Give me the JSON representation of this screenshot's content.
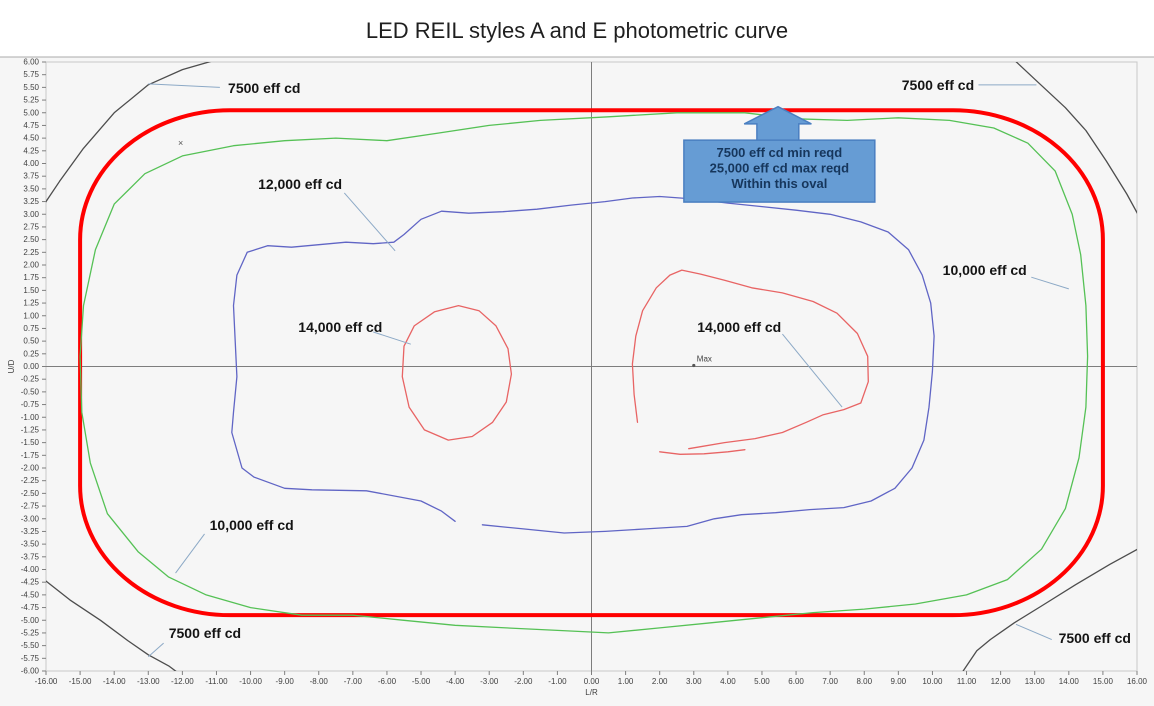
{
  "chart_data": {
    "type": "contour",
    "title": "LED REIL styles A and E photometric curve",
    "xlabel": "L/R",
    "ylabel": "U/D",
    "xlim": [
      -16,
      16
    ],
    "ylim": [
      -6,
      6
    ],
    "x_tick_step": 1.0,
    "y_tick_step": 0.25,
    "tick_decimals": 2,
    "grid": false,
    "legend": "none (curves labeled with leader lines)",
    "colors": {
      "chart_bg": "#f6f6f6",
      "frame_line": "#ababab",
      "plot_border": "#c8c8c8",
      "axis_line": "#7d7d7d",
      "tick": "#7f7f7f",
      "leader": "#8ca9c6",
      "requirement_oval": "#ff0000",
      "level_7500": "#4d4d4d",
      "level_10000": "#55c155",
      "level_12000": "#6065c5",
      "level_14000": "#e86464",
      "callout_fill": "#669cd4",
      "callout_border": "#4a7fc1",
      "callout_text": "#16365c"
    },
    "series": [
      {
        "name": "requirement oval (7500 min / 25000 max)",
        "level": "7500-25000",
        "color_key": "requirement_oval",
        "width": 4,
        "shape": "rounded_rect",
        "rect": {
          "x": [
            -15,
            15
          ],
          "y": [
            -4.9,
            5.05
          ],
          "rx": 4.4,
          "ry": 2.55
        }
      },
      {
        "name": "7500 eff cd",
        "level": 7500,
        "color_key": "level_7500",
        "width": 1.3,
        "paths": [
          {
            "closed": false,
            "points": [
              [
                -10.7,
                6.1
              ],
              [
                -12.0,
                5.85
              ],
              [
                -13.0,
                5.55
              ],
              [
                -14.0,
                5.0
              ],
              [
                -14.9,
                4.3
              ],
              [
                -15.6,
                3.65
              ],
              [
                -16.15,
                3.1
              ]
            ]
          },
          {
            "closed": false,
            "points": [
              [
                12.3,
                6.1
              ],
              [
                13.1,
                5.6
              ],
              [
                13.9,
                5.1
              ],
              [
                14.5,
                4.65
              ],
              [
                15.1,
                4.05
              ],
              [
                15.7,
                3.4
              ],
              [
                16.15,
                2.85
              ]
            ]
          },
          {
            "closed": false,
            "points": [
              [
                -16.15,
                -4.15
              ],
              [
                -15.3,
                -4.6
              ],
              [
                -14.4,
                -5.0
              ],
              [
                -13.6,
                -5.4
              ],
              [
                -13.0,
                -5.68
              ],
              [
                -12.4,
                -5.9
              ],
              [
                -12.0,
                -6.1
              ]
            ]
          },
          {
            "closed": false,
            "points": [
              [
                10.8,
                -6.1
              ],
              [
                11.3,
                -5.6
              ],
              [
                11.7,
                -5.38
              ],
              [
                12.4,
                -5.05
              ],
              [
                13.2,
                -4.72
              ],
              [
                14.2,
                -4.3
              ],
              [
                15.2,
                -3.9
              ],
              [
                16.15,
                -3.55
              ]
            ]
          }
        ]
      },
      {
        "name": "10,000 eff cd",
        "level": 10000,
        "color_key": "level_10000",
        "width": 1.3,
        "paths": [
          {
            "closed": true,
            "points": [
              [
                -12.0,
                4.15
              ],
              [
                -10.5,
                4.35
              ],
              [
                -9.0,
                4.45
              ],
              [
                -7.5,
                4.5
              ],
              [
                -6.0,
                4.45
              ],
              [
                -4.5,
                4.6
              ],
              [
                -3.0,
                4.75
              ],
              [
                -1.5,
                4.85
              ],
              [
                0.5,
                4.92
              ],
              [
                2.5,
                5.0
              ],
              [
                4.5,
                5.0
              ],
              [
                6.0,
                4.88
              ],
              [
                7.5,
                4.85
              ],
              [
                9.0,
                4.9
              ],
              [
                10.5,
                4.85
              ],
              [
                11.8,
                4.7
              ],
              [
                12.8,
                4.4
              ],
              [
                13.6,
                3.85
              ],
              [
                14.1,
                3.0
              ],
              [
                14.35,
                2.2
              ],
              [
                14.5,
                1.2
              ],
              [
                14.55,
                0.2
              ],
              [
                14.5,
                -0.8
              ],
              [
                14.3,
                -1.8
              ],
              [
                13.9,
                -2.8
              ],
              [
                13.2,
                -3.6
              ],
              [
                12.2,
                -4.2
              ],
              [
                11.0,
                -4.5
              ],
              [
                9.5,
                -4.68
              ],
              [
                8.0,
                -4.78
              ],
              [
                6.5,
                -4.85
              ],
              [
                5.0,
                -4.95
              ],
              [
                3.5,
                -5.05
              ],
              [
                2.0,
                -5.15
              ],
              [
                0.5,
                -5.25
              ],
              [
                -1.0,
                -5.2
              ],
              [
                -2.5,
                -5.15
              ],
              [
                -4.0,
                -5.1
              ],
              [
                -5.5,
                -5.0
              ],
              [
                -7.0,
                -4.9
              ],
              [
                -8.5,
                -4.9
              ],
              [
                -10.0,
                -4.75
              ],
              [
                -11.3,
                -4.5
              ],
              [
                -12.4,
                -4.15
              ],
              [
                -13.3,
                -3.65
              ],
              [
                -14.2,
                -2.9
              ],
              [
                -14.7,
                -1.9
              ],
              [
                -14.95,
                -0.9
              ],
              [
                -15.0,
                0.2
              ],
              [
                -14.9,
                1.2
              ],
              [
                -14.55,
                2.3
              ],
              [
                -14.0,
                3.2
              ],
              [
                -13.1,
                3.8
              ]
            ]
          }
        ]
      },
      {
        "name": "12,000 eff cd",
        "level": 12000,
        "color_key": "level_12000",
        "width": 1.3,
        "paths": [
          {
            "closed": false,
            "points": [
              [
                -3.2,
                -3.12
              ],
              [
                -2.0,
                -3.2
              ],
              [
                -0.8,
                -3.28
              ],
              [
                0.4,
                -3.25
              ],
              [
                1.6,
                -3.2
              ],
              [
                2.8,
                -3.15
              ],
              [
                3.6,
                -3.0
              ],
              [
                4.4,
                -2.92
              ],
              [
                5.4,
                -2.88
              ],
              [
                6.4,
                -2.82
              ],
              [
                7.4,
                -2.78
              ],
              [
                8.2,
                -2.65
              ],
              [
                8.9,
                -2.4
              ],
              [
                9.4,
                -2.0
              ],
              [
                9.75,
                -1.45
              ],
              [
                9.9,
                -0.8
              ],
              [
                10.0,
                -0.1
              ],
              [
                10.05,
                0.6
              ],
              [
                9.95,
                1.25
              ],
              [
                9.7,
                1.8
              ],
              [
                9.3,
                2.3
              ],
              [
                8.7,
                2.65
              ],
              [
                7.9,
                2.85
              ],
              [
                7.0,
                3.0
              ],
              [
                6.0,
                3.08
              ],
              [
                5.0,
                3.15
              ],
              [
                4.0,
                3.22
              ],
              [
                3.0,
                3.3
              ],
              [
                2.0,
                3.35
              ],
              [
                1.2,
                3.32
              ],
              [
                0.4,
                3.25
              ],
              [
                -0.6,
                3.18
              ],
              [
                -1.6,
                3.1
              ],
              [
                -2.6,
                3.05
              ],
              [
                -3.6,
                3.02
              ],
              [
                -4.4,
                3.06
              ],
              [
                -5.0,
                2.9
              ],
              [
                -5.5,
                2.6
              ],
              [
                -5.8,
                2.45
              ],
              [
                -6.4,
                2.42
              ],
              [
                -7.2,
                2.45
              ],
              [
                -8.0,
                2.4
              ],
              [
                -8.8,
                2.35
              ],
              [
                -9.5,
                2.38
              ],
              [
                -10.1,
                2.25
              ],
              [
                -10.4,
                1.8
              ],
              [
                -10.5,
                1.2
              ],
              [
                -10.45,
                0.5
              ],
              [
                -10.4,
                -0.2
              ],
              [
                -10.5,
                -0.9
              ],
              [
                -10.55,
                -1.3
              ],
              [
                -10.25,
                -2.0
              ],
              [
                -9.9,
                -2.18
              ],
              [
                -9.0,
                -2.4
              ],
              [
                -8.2,
                -2.43
              ],
              [
                -6.6,
                -2.45
              ],
              [
                -5.0,
                -2.65
              ],
              [
                -4.4,
                -2.85
              ],
              [
                -4.0,
                -3.05
              ]
            ]
          }
        ]
      },
      {
        "name": "14,000 eff cd",
        "level": 14000,
        "color_key": "level_14000",
        "width": 1.3,
        "paths": [
          {
            "closed": true,
            "points": [
              [
                -3.9,
                1.2
              ],
              [
                -3.3,
                1.1
              ],
              [
                -2.8,
                0.8
              ],
              [
                -2.45,
                0.35
              ],
              [
                -2.35,
                -0.15
              ],
              [
                -2.5,
                -0.7
              ],
              [
                -2.9,
                -1.1
              ],
              [
                -3.5,
                -1.38
              ],
              [
                -4.2,
                -1.45
              ],
              [
                -4.9,
                -1.25
              ],
              [
                -5.35,
                -0.8
              ],
              [
                -5.55,
                -0.2
              ],
              [
                -5.5,
                0.4
              ],
              [
                -5.2,
                0.8
              ],
              [
                -4.6,
                1.08
              ]
            ]
          },
          {
            "closed": false,
            "points": [
              [
                1.35,
                -1.1
              ],
              [
                1.25,
                -0.55
              ],
              [
                1.2,
                0.05
              ],
              [
                1.3,
                0.6
              ],
              [
                1.5,
                1.1
              ],
              [
                1.9,
                1.55
              ],
              [
                2.3,
                1.8
              ],
              [
                2.65,
                1.9
              ],
              [
                3.2,
                1.82
              ],
              [
                3.9,
                1.7
              ],
              [
                4.7,
                1.55
              ],
              [
                5.6,
                1.45
              ],
              [
                6.5,
                1.28
              ],
              [
                7.2,
                1.05
              ],
              [
                7.8,
                0.65
              ],
              [
                8.1,
                0.2
              ],
              [
                8.12,
                -0.3
              ],
              [
                7.9,
                -0.72
              ],
              [
                7.4,
                -0.85
              ],
              [
                6.8,
                -0.95
              ],
              [
                6.3,
                -1.1
              ],
              [
                5.6,
                -1.3
              ],
              [
                4.8,
                -1.42
              ],
              [
                3.9,
                -1.5
              ],
              [
                3.2,
                -1.58
              ],
              [
                2.85,
                -1.62
              ]
            ]
          },
          {
            "closed": false,
            "points": [
              [
                2.0,
                -1.68
              ],
              [
                2.6,
                -1.73
              ],
              [
                3.3,
                -1.72
              ],
              [
                4.0,
                -1.68
              ],
              [
                4.5,
                -1.64
              ]
            ]
          }
        ]
      }
    ],
    "labels": [
      {
        "text": "7500 eff cd",
        "x": -10.66,
        "y": 5.49,
        "leader": [
          [
            -13.0,
            5.57
          ],
          [
            -10.9,
            5.5
          ]
        ]
      },
      {
        "text": "7500 eff cd",
        "x": 9.1,
        "y": 5.55,
        "leader": [
          [
            11.35,
            5.55
          ],
          [
            13.05,
            5.55
          ]
        ]
      },
      {
        "text": "12,000 eff cd",
        "x": -9.78,
        "y": 3.6,
        "leader": [
          [
            -7.25,
            3.42
          ],
          [
            -5.76,
            2.28
          ]
        ]
      },
      {
        "text": "14,000 eff cd",
        "x": -8.6,
        "y": 0.78,
        "leader": [
          [
            -6.4,
            0.68
          ],
          [
            -5.3,
            0.44
          ]
        ]
      },
      {
        "text": "14,000 eff cd",
        "x": 3.1,
        "y": 0.78,
        "leader": [
          [
            5.6,
            0.64
          ],
          [
            7.35,
            -0.8
          ]
        ]
      },
      {
        "text": "10,000 eff cd",
        "x": 10.3,
        "y": 1.9,
        "leader": [
          [
            12.9,
            1.76
          ],
          [
            14.0,
            1.53
          ]
        ]
      },
      {
        "text": "10,000 eff cd",
        "x": -11.2,
        "y": -3.12,
        "leader": [
          [
            -11.35,
            -3.3
          ],
          [
            -12.2,
            -4.07
          ]
        ]
      },
      {
        "text": "7500 eff cd",
        "x": -12.4,
        "y": -5.25,
        "leader": [
          [
            -12.55,
            -5.45
          ],
          [
            -13.0,
            -5.72
          ]
        ]
      },
      {
        "text": "7500 eff cd",
        "x": 13.7,
        "y": -5.35,
        "leader": [
          [
            13.5,
            -5.38
          ],
          [
            12.45,
            -5.08
          ]
        ]
      }
    ],
    "callout": {
      "lines": [
        "7500 eff cd min reqd",
        "25,000 eff cd max reqd",
        "Within this oval"
      ],
      "box": [
        2.71,
        3.24,
        8.31,
        4.46
      ],
      "arrow_points": [
        [
          5.47,
          5.12
        ],
        [
          6.45,
          4.78
        ],
        [
          6.08,
          4.78
        ],
        [
          6.08,
          4.46
        ],
        [
          4.85,
          4.46
        ],
        [
          4.85,
          4.78
        ],
        [
          4.48,
          4.78
        ]
      ]
    },
    "point_markers": [
      {
        "symbol": "x",
        "label": "",
        "x": -12.05,
        "y": 4.4
      },
      {
        "symbol": "max",
        "label": "Max",
        "x": 3.0,
        "y": 0.02
      }
    ]
  }
}
